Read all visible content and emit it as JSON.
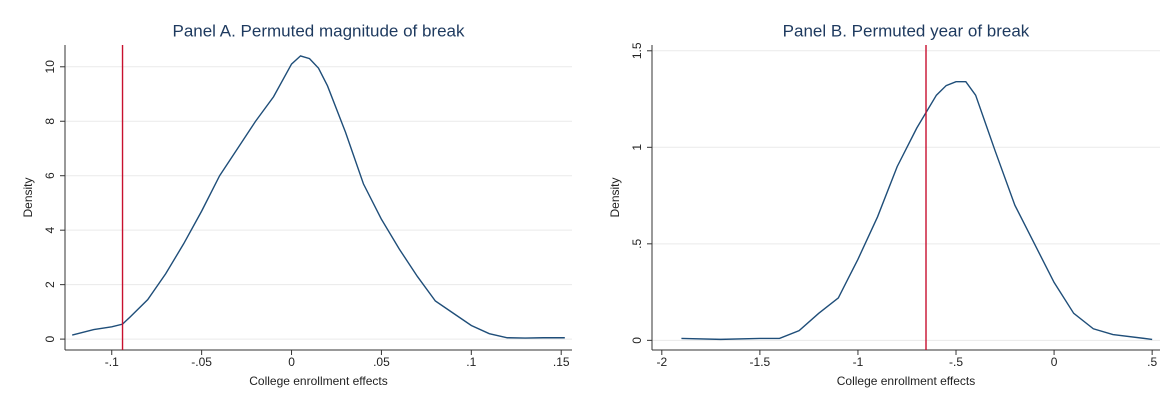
{
  "chart_data": [
    {
      "type": "line",
      "title": "Panel A. Permuted magnitude of break",
      "x_label": "College enrollment effects",
      "y_label": "Density",
      "x": [
        -0.122,
        -0.11,
        -0.1,
        -0.094,
        -0.09,
        -0.08,
        -0.07,
        -0.06,
        -0.05,
        -0.04,
        -0.03,
        -0.02,
        -0.01,
        0,
        0.005,
        0.01,
        0.015,
        0.02,
        0.03,
        0.04,
        0.05,
        0.06,
        0.07,
        0.08,
        0.09,
        0.1,
        0.11,
        0.12,
        0.13,
        0.14,
        0.152
      ],
      "series": [
        {
          "color": "#1f4e79",
          "values": [
            0.15,
            0.35,
            0.45,
            0.55,
            0.8,
            1.45,
            2.4,
            3.5,
            4.7,
            6.0,
            7.0,
            8.0,
            8.9,
            10.1,
            10.4,
            10.3,
            9.95,
            9.3,
            7.6,
            5.7,
            4.4,
            3.3,
            2.3,
            1.4,
            0.95,
            0.5,
            0.2,
            0.05,
            0.04,
            0.05,
            0.05
          ]
        }
      ],
      "reference_line": {
        "value": -0.094,
        "color": "#c8102e"
      },
      "xlim": [
        -0.126,
        0.156
      ],
      "ylim": [
        -0.4,
        10.8
      ],
      "xticks": [
        {
          "value": -0.1,
          "label": "-.1"
        },
        {
          "value": -0.05,
          "label": "-.05"
        },
        0,
        {
          "value": 0.05,
          "label": ".05"
        },
        {
          "value": 0.1,
          "label": ".1"
        },
        {
          "value": 0.15,
          "label": ".15"
        }
      ],
      "yticks": [
        0,
        2,
        4,
        6,
        8,
        10
      ],
      "grid": true
    },
    {
      "type": "line",
      "title": "Panel B. Permuted year of break",
      "x_label": "College enrollment effects",
      "y_label": "Density",
      "x": [
        -1.9,
        -1.7,
        -1.5,
        -1.4,
        -1.3,
        -1.2,
        -1.1,
        -1.05,
        -1,
        -0.9,
        -0.8,
        -0.7,
        -0.6,
        -0.55,
        -0.5,
        -0.45,
        -0.4,
        -0.3,
        -0.2,
        -0.1,
        0,
        0.1,
        0.2,
        0.3,
        0.5
      ],
      "series": [
        {
          "color": "#1f4e79",
          "values": [
            0.01,
            0.005,
            0.01,
            0.01,
            0.05,
            0.14,
            0.22,
            0.32,
            0.42,
            0.64,
            0.9,
            1.1,
            1.27,
            1.32,
            1.34,
            1.34,
            1.27,
            0.98,
            0.7,
            0.5,
            0.3,
            0.14,
            0.06,
            0.03,
            0.005
          ]
        }
      ],
      "reference_line": {
        "value": -0.653,
        "color": "#c8102e"
      },
      "xlim": [
        -2.05,
        0.54
      ],
      "ylim": [
        -0.05,
        1.53
      ],
      "xticks": [
        -2,
        -1.5,
        -1,
        {
          "value": -0.5,
          "label": "-.5"
        },
        0,
        {
          "value": 0.5,
          "label": ".5"
        }
      ],
      "yticks": [
        0,
        {
          "value": 0.5,
          "label": ".5"
        },
        1,
        1.5
      ],
      "grid": true
    }
  ]
}
